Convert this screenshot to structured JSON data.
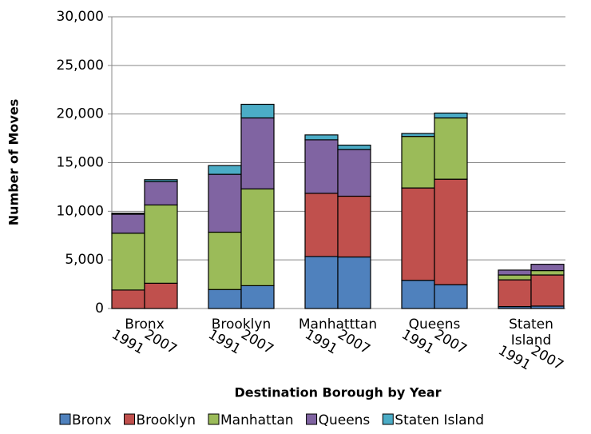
{
  "chart_data": {
    "type": "stacked_bar",
    "x_label": "Destination Borough by Year",
    "y_label": "Number of Moves",
    "groups": [
      "Bronx",
      "Brooklyn",
      "Manhatttan",
      "Queens",
      "Staten Island"
    ],
    "categories": [
      "1991",
      "2007",
      "1991",
      "2007",
      "1991",
      "2007",
      "1991",
      "2007",
      "1991",
      "2007"
    ],
    "series": [
      {
        "name": "Bronx",
        "color": "#4f81bd",
        "values": [
          0,
          0,
          1950,
          2350,
          5350,
          5300,
          2900,
          2450,
          200,
          250
        ]
      },
      {
        "name": "Brooklyn",
        "color": "#c0504d",
        "values": [
          1900,
          2600,
          0,
          0,
          6500,
          6250,
          9500,
          10850,
          2750,
          3200
        ]
      },
      {
        "name": "Manhattan",
        "color": "#9bbb59",
        "values": [
          5850,
          8050,
          5900,
          9950,
          0,
          0,
          5300,
          6300,
          500,
          450
        ]
      },
      {
        "name": "Queens",
        "color": "#8064a2",
        "values": [
          1950,
          2400,
          5950,
          7300,
          5500,
          4800,
          0,
          0,
          500,
          650
        ]
      },
      {
        "name": "Staten Island",
        "color": "#4bacc6",
        "values": [
          100,
          200,
          900,
          1400,
          500,
          450,
          300,
          500,
          0,
          0
        ]
      }
    ],
    "ylim": [
      0,
      30000
    ],
    "yticks": [
      0,
      {
        "value": 5000,
        "label": "5,000"
      },
      {
        "value": 10000,
        "label": "10,000"
      },
      {
        "value": 15000,
        "label": "15,000"
      },
      {
        "value": 20000,
        "label": "20,000"
      },
      {
        "value": 25000,
        "label": "25,000"
      },
      {
        "value": 30000,
        "label": "30,000"
      }
    ],
    "grid": true,
    "legend": "bottom"
  }
}
